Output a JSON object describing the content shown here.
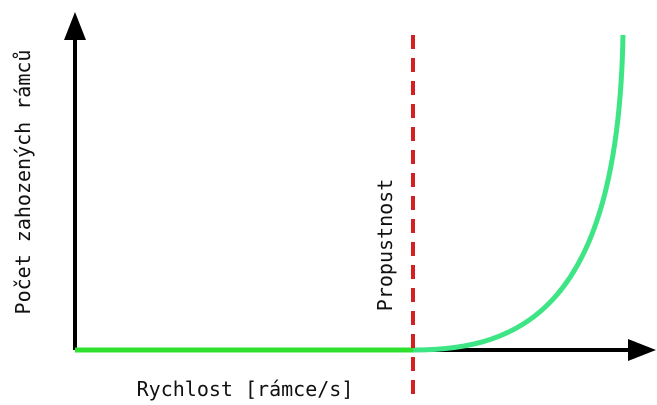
{
  "x_axis_label": "Rychlost [rámce/s]",
  "y_axis_label": "Počet zahozených rámců",
  "annotation": "Propustnost"
}
